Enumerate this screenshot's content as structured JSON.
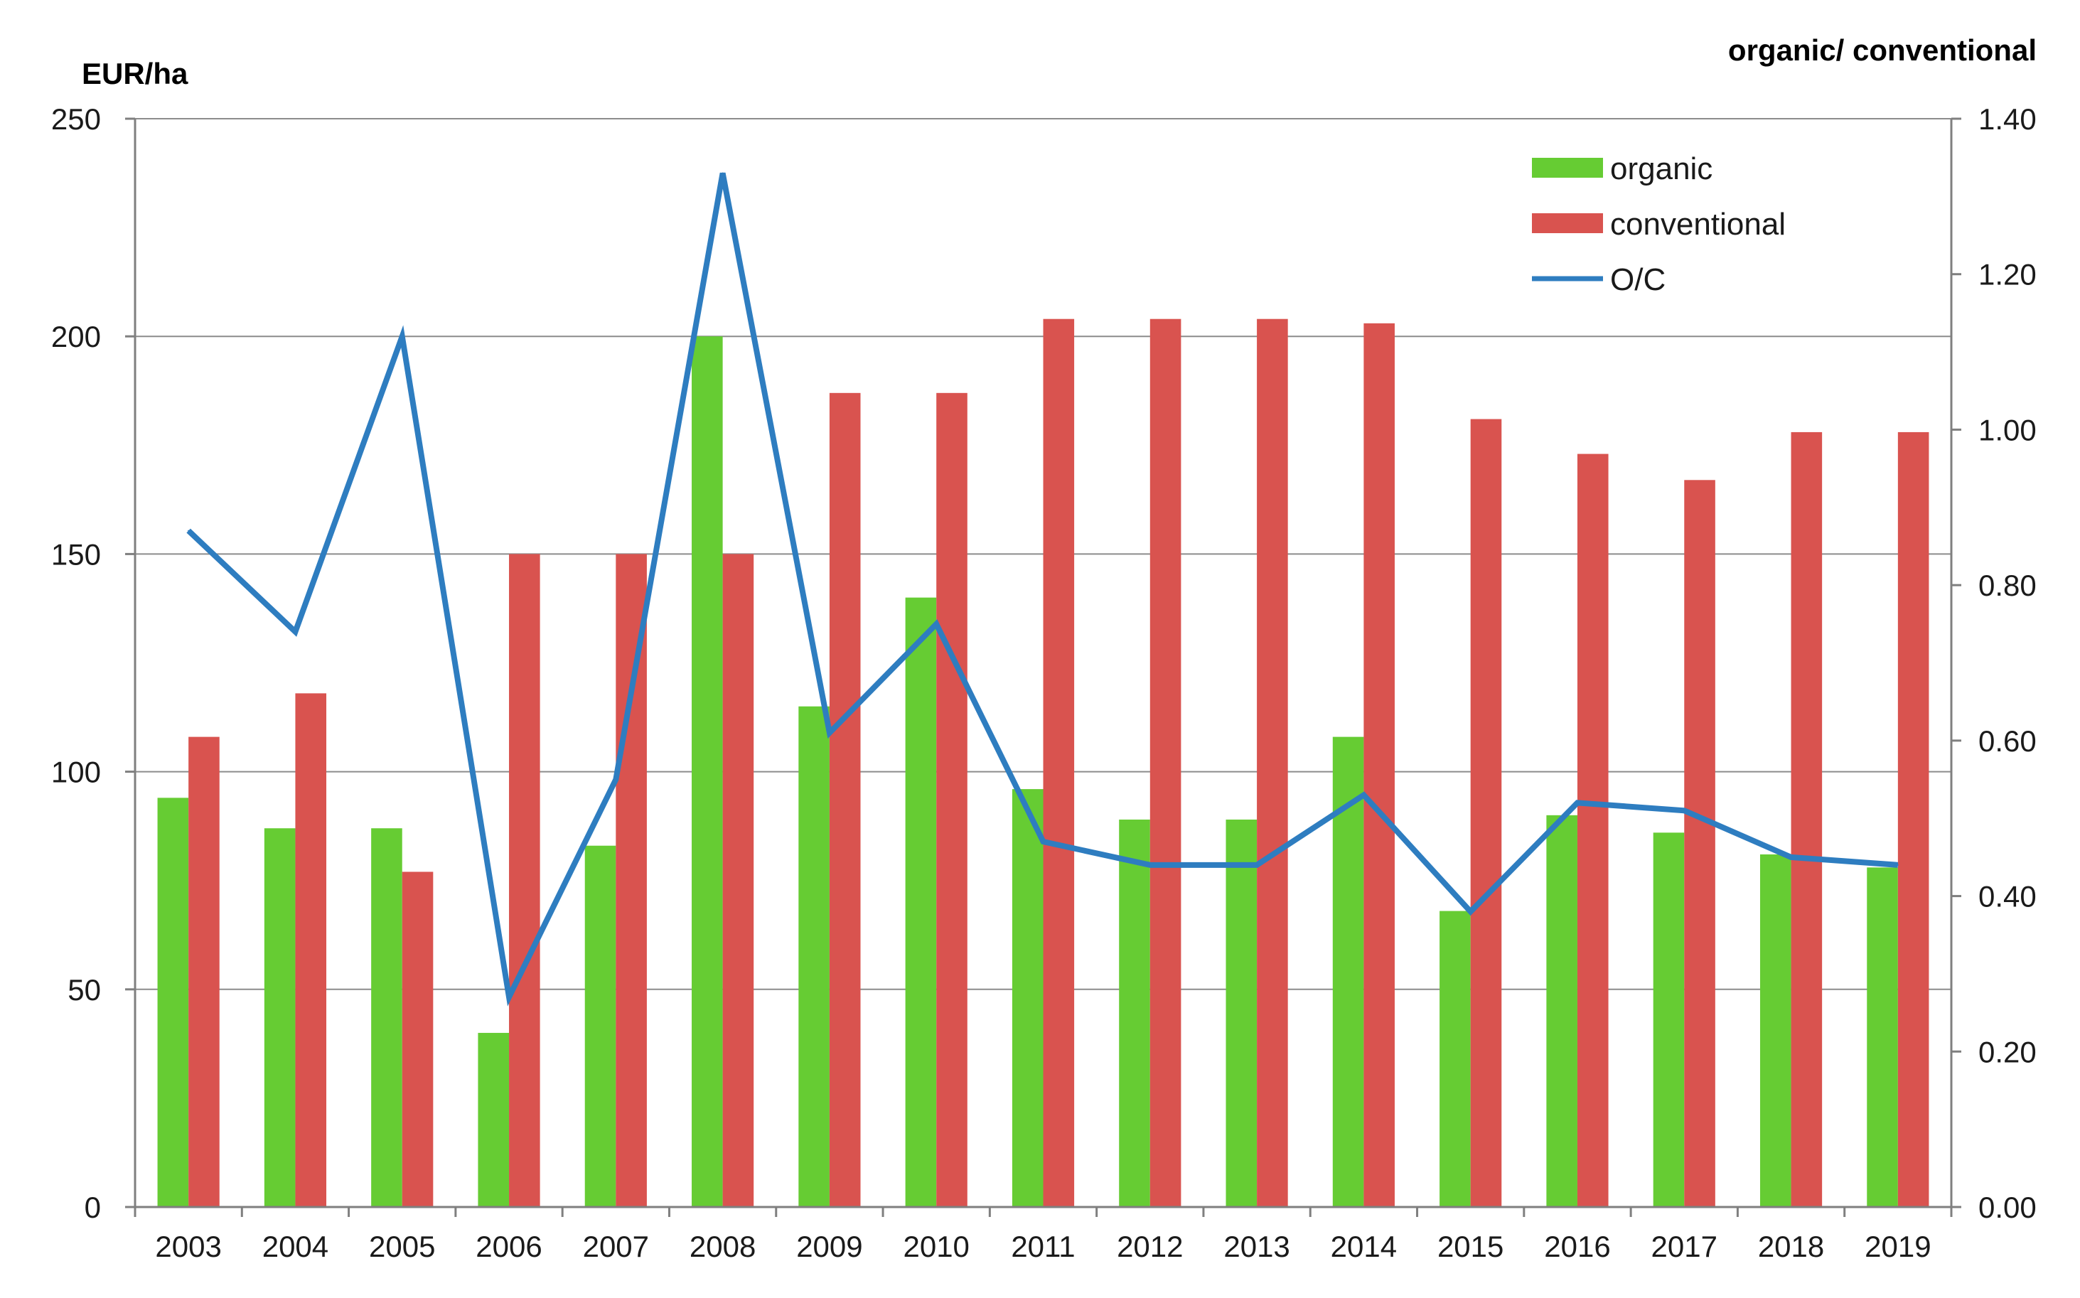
{
  "chart_data": {
    "type": "bar",
    "categories": [
      "2003",
      "2004",
      "2005",
      "2006",
      "2007",
      "2008",
      "2009",
      "2010",
      "2011",
      "2012",
      "2013",
      "2014",
      "2015",
      "2016",
      "2017",
      "2018",
      "2019"
    ],
    "series": [
      {
        "name": "organic",
        "axis": "left",
        "kind": "bar",
        "color": "#66cc33",
        "values": [
          94,
          87,
          87,
          40,
          83,
          200,
          115,
          140,
          96,
          89,
          89,
          108,
          68,
          90,
          86,
          81,
          78
        ]
      },
      {
        "name": "conventional",
        "axis": "left",
        "kind": "bar",
        "color": "#d9534f",
        "values": [
          108,
          118,
          77,
          150,
          150,
          150,
          187,
          187,
          204,
          204,
          204,
          203,
          181,
          173,
          167,
          178,
          178
        ]
      },
      {
        "name": "O/C",
        "axis": "right",
        "kind": "line",
        "color": "#2e7dc0",
        "values": [
          0.87,
          0.74,
          1.12,
          0.27,
          0.55,
          1.33,
          0.61,
          0.75,
          0.47,
          0.44,
          0.44,
          0.53,
          0.38,
          0.52,
          0.51,
          0.45,
          0.44
        ]
      }
    ],
    "ylabel": "EUR/ha",
    "y2label": "organic/ conventional",
    "ylim": [
      0,
      250
    ],
    "y2lim": [
      0,
      1.4
    ],
    "yticks": [
      "0",
      "50",
      "100",
      "150",
      "200",
      "250"
    ],
    "y2ticks": [
      "0.00",
      "0.20",
      "0.40",
      "0.60",
      "0.80",
      "1.00",
      "1.20",
      "1.40"
    ],
    "grid": true,
    "legend_position": "top-right"
  }
}
